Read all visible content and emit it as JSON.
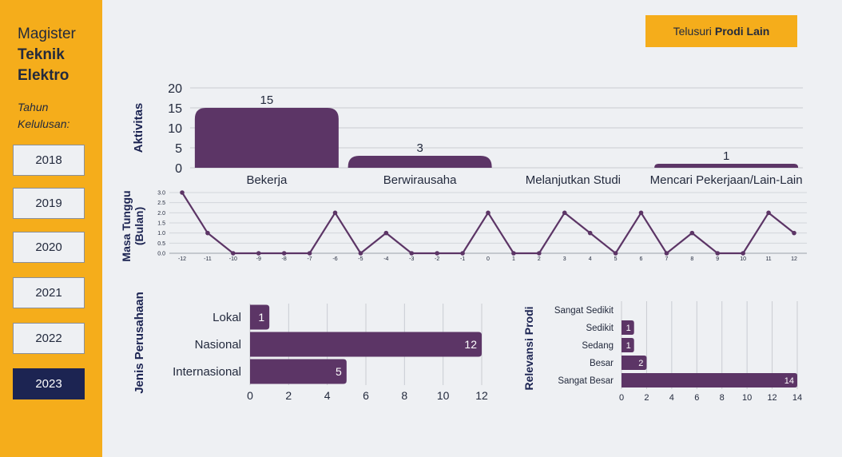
{
  "sidebar": {
    "program_line1": "Magister",
    "program_line2": "Teknik",
    "program_line3": "Elektro",
    "year_caption": "Tahun Kelulusan:",
    "years": [
      "2018",
      "2019",
      "2020",
      "2021",
      "2022",
      "2023"
    ],
    "selected_year": "2023"
  },
  "header": {
    "explore_prefix": "Telusuri",
    "explore_bold": "Prodi Lain"
  },
  "colors": {
    "accent": "#f5ad1b",
    "bar": "#5c3566",
    "active": "#1c2452",
    "background": "#eef0f3"
  },
  "chart_data": [
    {
      "type": "bar",
      "ylabel": "Aktivitas",
      "categories": [
        "Bekerja",
        "Berwirausaha",
        "Melanjutkan Studi",
        "Mencari Pekerjaan/Lain-Lain"
      ],
      "values": [
        15,
        3,
        0,
        1
      ],
      "labels": [
        "15",
        "3",
        "",
        "1"
      ],
      "yticks": [
        "0",
        "5",
        "10",
        "15",
        "20"
      ],
      "ylim": [
        0,
        20
      ]
    },
    {
      "type": "line",
      "ylabel": "Masa Tunggu (Bulan)",
      "x": [
        "-12",
        "-11",
        "-10",
        "-9",
        "-8",
        "-7",
        "-6",
        "-5",
        "-4",
        "-3",
        "-2",
        "-1",
        "0",
        "1",
        "2",
        "3",
        "4",
        "5",
        "6",
        "7",
        "8",
        "9",
        "10",
        "11",
        "12"
      ],
      "values": [
        3,
        1,
        0,
        0,
        0,
        0,
        2,
        0,
        1,
        0,
        0,
        0,
        2,
        0,
        0,
        2,
        1,
        0,
        2,
        0,
        1,
        0,
        0,
        2,
        1
      ],
      "yticks": [
        "0.0",
        "0.5",
        "1.0",
        "1.5",
        "2.0",
        "2.5",
        "3.0"
      ],
      "ylim": [
        0,
        3
      ]
    },
    {
      "type": "bar",
      "orientation": "horizontal",
      "ylabel": "Jenis Perusahaan",
      "categories": [
        "Lokal",
        "Nasional",
        "Internasional"
      ],
      "values": [
        1,
        12,
        5
      ],
      "labels": [
        "1",
        "12",
        "5"
      ],
      "xticks": [
        "0",
        "2",
        "4",
        "6",
        "8",
        "10",
        "12"
      ],
      "xlim": [
        0,
        12
      ]
    },
    {
      "type": "bar",
      "orientation": "horizontal",
      "ylabel": "Relevansi Prodi",
      "categories": [
        "Sangat Sedikit",
        "Sedikit",
        "Sedang",
        "Besar",
        "Sangat Besar"
      ],
      "values": [
        0,
        1,
        1,
        2,
        14
      ],
      "labels": [
        "",
        "1",
        "1",
        "2",
        "14"
      ],
      "xticks": [
        "0",
        "2",
        "4",
        "6",
        "8",
        "10",
        "12",
        "14"
      ],
      "xlim": [
        0,
        14
      ]
    }
  ]
}
